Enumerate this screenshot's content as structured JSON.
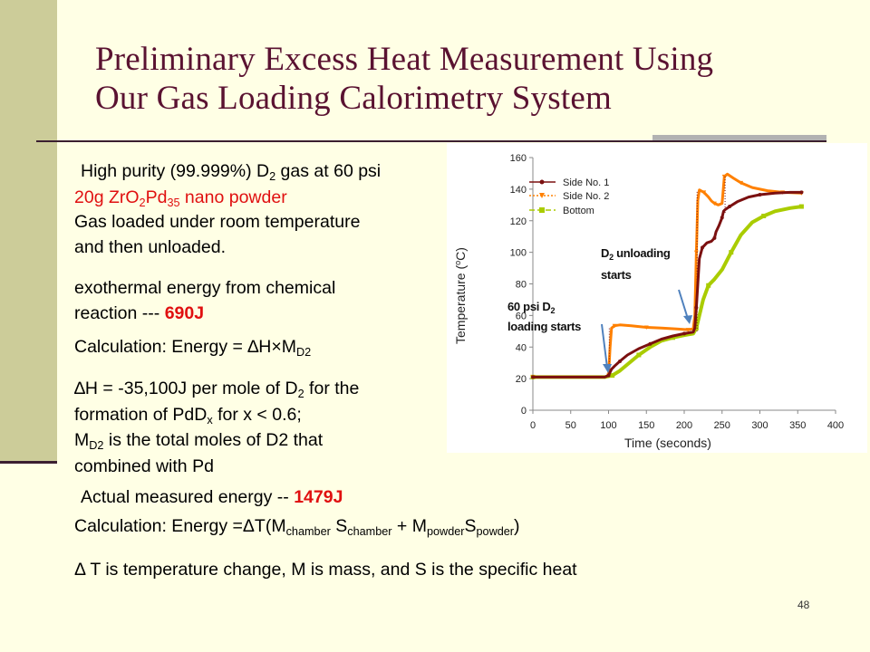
{
  "slide": {
    "title_line1": "Preliminary Excess Heat Measurement Using",
    "title_line2": "Our Gas Loading Calorimetry System",
    "page_number": "48"
  },
  "text": {
    "line1_pre": "High purity (99.999%) D",
    "line1_sub": "2",
    "line1_post": " gas at 60 psi",
    "line2_a": "20g ZrO",
    "line2_sub1": "2",
    "line2_b": "Pd",
    "line2_sub2": "35",
    "line2_c": " nano powder",
    "line3": "Gas loaded under room temperature",
    "line4": "and then unloaded.",
    "exo1": "exothermal energy from chemical",
    "exo2_pre": "reaction --- ",
    "exo2_val": "690J",
    "calc1_pre": "Calculation: Energy = ∆H×M",
    "calc1_sub": "D2",
    "dh1_pre": "∆H = -35,100J per mole of D",
    "dh1_sub": "2",
    "dh1_post": " for the",
    "dh2_pre": "formation of PdD",
    "dh2_sub": "x",
    "dh2_post": " for x < 0.6;",
    "md1_pre": "M",
    "md1_sub": "D2",
    "md1_post": " is the total moles of D2 that",
    "md2": "combined with Pd",
    "actual_pre": "Actual measured energy  -- ",
    "actual_val": "1479J",
    "calc2_a": "Calculation: Energy =ΔT(M",
    "calc2_sub1": "chamber",
    "calc2_b": " S",
    "calc2_sub2": "chamber",
    "calc2_c": " + M",
    "calc2_sub3": "powder",
    "calc2_d": "S",
    "calc2_sub4": "powder",
    "calc2_e": ")",
    "delta_line": "Δ T is temperature change, M is mass, and S is the specific heat"
  },
  "chart_data": {
    "type": "line",
    "xlabel": "Time (seconds)",
    "ylabel_main": "Temperature (",
    "ylabel_sup": "o",
    "ylabel_end": "C)",
    "xlim": [
      0,
      400
    ],
    "ylim": [
      0,
      160
    ],
    "xticks": [
      0,
      50,
      100,
      150,
      200,
      250,
      300,
      350,
      400
    ],
    "yticks": [
      0,
      20,
      40,
      60,
      80,
      100,
      120,
      140,
      160
    ],
    "series": [
      {
        "name": "Side No. 1",
        "color": "#7B1010",
        "points": [
          [
            0,
            21
          ],
          [
            60,
            21
          ],
          [
            95,
            21
          ],
          [
            100,
            22
          ],
          [
            104,
            26
          ],
          [
            108,
            28
          ],
          [
            115,
            31
          ],
          [
            125,
            35
          ],
          [
            140,
            39
          ],
          [
            155,
            42
          ],
          [
            170,
            45
          ],
          [
            185,
            47
          ],
          [
            200,
            48.5
          ],
          [
            212,
            49.5
          ],
          [
            214,
            52
          ],
          [
            216,
            65
          ],
          [
            218,
            80
          ],
          [
            220,
            96
          ],
          [
            224,
            103
          ],
          [
            230,
            106
          ],
          [
            236,
            107
          ],
          [
            240,
            109
          ],
          [
            242,
            113
          ],
          [
            246,
            117
          ],
          [
            250,
            122
          ],
          [
            252,
            126
          ],
          [
            254,
            127
          ],
          [
            260,
            129
          ],
          [
            270,
            132
          ],
          [
            285,
            135
          ],
          [
            300,
            136.5
          ],
          [
            320,
            137.5
          ],
          [
            340,
            138
          ],
          [
            355,
            138
          ]
        ]
      },
      {
        "name": "Side No. 2",
        "color": "#FF8000",
        "points": [
          [
            0,
            21
          ],
          [
            60,
            21
          ],
          [
            95,
            21
          ],
          [
            100,
            22
          ],
          [
            102,
            40
          ],
          [
            104,
            52
          ],
          [
            108,
            53.5
          ],
          [
            115,
            54
          ],
          [
            130,
            53.5
          ],
          [
            150,
            52.5
          ],
          [
            170,
            52
          ],
          [
            190,
            51.5
          ],
          [
            205,
            51
          ],
          [
            212,
            51.5
          ],
          [
            214,
            60
          ],
          [
            216,
            100
          ],
          [
            218,
            133
          ],
          [
            220,
            139.5
          ],
          [
            226,
            138
          ],
          [
            232,
            135
          ],
          [
            236,
            132.5
          ],
          [
            240,
            131
          ],
          [
            245,
            130
          ],
          [
            250,
            131
          ],
          [
            253,
            148
          ],
          [
            257,
            149.5
          ],
          [
            265,
            147
          ],
          [
            275,
            144
          ],
          [
            290,
            141
          ],
          [
            310,
            139
          ],
          [
            330,
            138
          ],
          [
            355,
            137.5
          ]
        ]
      },
      {
        "name": "Bottom",
        "color": "#AACC00",
        "points": [
          [
            0,
            21
          ],
          [
            60,
            21
          ],
          [
            95,
            21
          ],
          [
            105,
            22
          ],
          [
            115,
            25
          ],
          [
            125,
            29
          ],
          [
            140,
            35
          ],
          [
            155,
            40
          ],
          [
            170,
            44
          ],
          [
            185,
            46
          ],
          [
            200,
            47.5
          ],
          [
            212,
            48.5
          ],
          [
            216,
            52
          ],
          [
            220,
            60
          ],
          [
            225,
            70
          ],
          [
            232,
            79
          ],
          [
            240,
            83
          ],
          [
            250,
            89
          ],
          [
            262,
            100
          ],
          [
            275,
            111
          ],
          [
            290,
            119
          ],
          [
            305,
            123
          ],
          [
            320,
            126
          ],
          [
            340,
            128
          ],
          [
            355,
            129
          ]
        ]
      }
    ],
    "annotations": [
      {
        "text_pre": "60 psi D",
        "text_sub": "2",
        "text_line2": "loading starts"
      },
      {
        "text_pre": "D",
        "text_sub": "2",
        "text_post": " unloading",
        "text_line2": "starts"
      }
    ]
  }
}
